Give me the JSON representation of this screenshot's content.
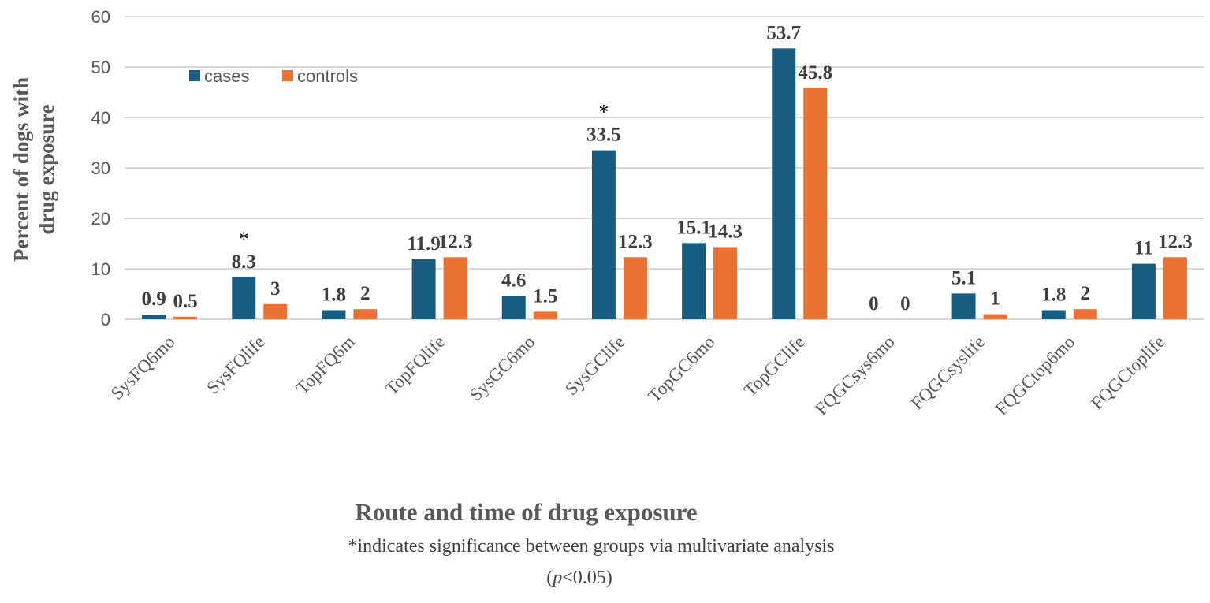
{
  "chart_data": {
    "type": "bar",
    "title": "",
    "xlabel": "Route and time of drug exposure",
    "ylabel": "Percent of dogs with drug exposure",
    "ylabel_lines": [
      "Percent of dogs with",
      "drug exposure"
    ],
    "ylim": [
      0,
      60
    ],
    "yticks": [
      0,
      10,
      20,
      30,
      40,
      50,
      60
    ],
    "grid": true,
    "legend_position": "top-left",
    "categories": [
      "SysFQ6mo",
      "SysFQlife",
      "TopFQ6m",
      "TopFQlife",
      "SysGC6mo",
      "SysGClife",
      "TopGC6mo",
      "TopGClife",
      "FQGCsys6mo",
      "FQGCsyslife",
      "FQGCtop6mo",
      "FQGCtoplife"
    ],
    "series": [
      {
        "name": "cases",
        "color": "#175d82",
        "values": [
          0.9,
          8.3,
          1.8,
          11.9,
          4.6,
          33.5,
          15.1,
          53.7,
          0,
          5.1,
          1.8,
          11
        ]
      },
      {
        "name": "controls",
        "color": "#e97132",
        "values": [
          0.5,
          3,
          2,
          12.3,
          1.5,
          12.3,
          14.3,
          45.8,
          0,
          1,
          2,
          12.3
        ]
      }
    ],
    "significant": [
      "SysFQlife",
      "SysGClife"
    ],
    "significance_marker": "*",
    "footnote_line1": "*indicates significance between groups via multivariate analysis",
    "footnote_line2_prefix": "(",
    "footnote_line2_italic": "p",
    "footnote_line2_suffix": "<0.05)"
  }
}
